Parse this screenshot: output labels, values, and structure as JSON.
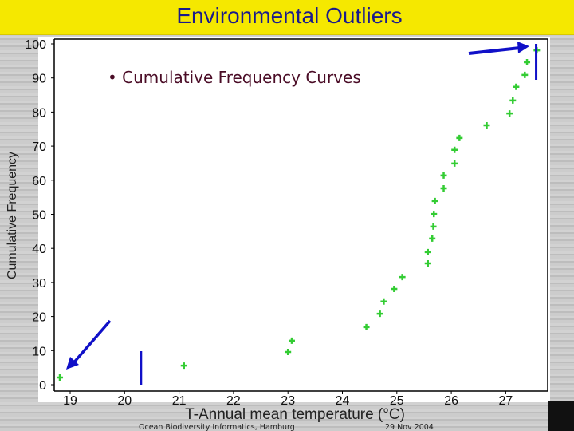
{
  "slide": {
    "title": "Environmental Outliers",
    "bullet": "Cumulative Frequency Curves",
    "footer_left": "Ocean Biodiversity Informatics, Hamburg",
    "footer_right": "29 Nov 2004"
  },
  "chart_data": {
    "type": "scatter",
    "title": "",
    "xlabel": "T-Annual mean temperature (°C)",
    "ylabel": "Cumulative Frequency",
    "xlim": [
      18.8,
      27.8
    ],
    "ylim": [
      0,
      100
    ],
    "xticks": [
      19,
      20,
      21,
      22,
      23,
      24,
      25,
      26,
      27
    ],
    "yticks": [
      0,
      10,
      20,
      30,
      40,
      50,
      60,
      70,
      80,
      90,
      100
    ],
    "grid": false,
    "marker_color": "#33cc33",
    "annotation_color": "#1010c8",
    "points": [
      [
        18.81,
        2.1
      ],
      [
        21.09,
        5.6
      ],
      [
        23.0,
        9.6
      ],
      [
        23.07,
        12.9
      ],
      [
        24.44,
        16.9
      ],
      [
        24.69,
        20.8
      ],
      [
        24.76,
        24.4
      ],
      [
        24.95,
        28.1
      ],
      [
        25.1,
        31.6
      ],
      [
        25.57,
        35.6
      ],
      [
        25.57,
        38.9
      ],
      [
        25.65,
        42.9
      ],
      [
        25.67,
        46.4
      ],
      [
        25.68,
        50.1
      ],
      [
        25.7,
        53.9
      ],
      [
        25.86,
        57.6
      ],
      [
        25.86,
        61.4
      ],
      [
        26.06,
        64.9
      ],
      [
        26.06,
        68.9
      ],
      [
        26.15,
        72.4
      ],
      [
        26.65,
        76.1
      ],
      [
        27.07,
        79.6
      ],
      [
        27.13,
        83.4
      ],
      [
        27.19,
        87.4
      ],
      [
        27.35,
        90.9
      ],
      [
        27.39,
        94.6
      ],
      [
        27.57,
        98.1
      ]
    ],
    "annotations": {
      "lower_cutoff_x": 20.3,
      "upper_cutoff_x": 27.5
    }
  }
}
